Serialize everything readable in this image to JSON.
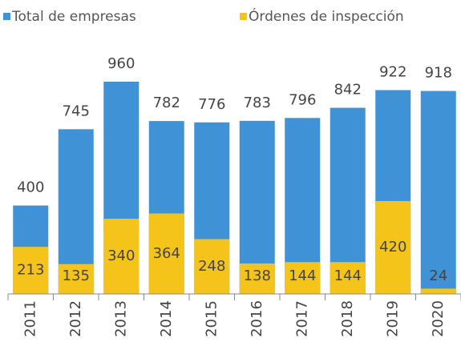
{
  "chart_data": {
    "type": "bar",
    "categories": [
      "2011",
      "2012",
      "2013",
      "2014",
      "2015",
      "2016",
      "2017",
      "2018",
      "2019",
      "2020"
    ],
    "series": [
      {
        "name": "Total de empresas",
        "color": "#3f92d6",
        "values": [
          400,
          745,
          960,
          782,
          776,
          783,
          796,
          842,
          922,
          918
        ]
      },
      {
        "name": "Órdenes de inspección",
        "color": "#f5c41b",
        "values": [
          213,
          135,
          340,
          364,
          248,
          138,
          144,
          144,
          420,
          24
        ]
      }
    ]
  }
}
